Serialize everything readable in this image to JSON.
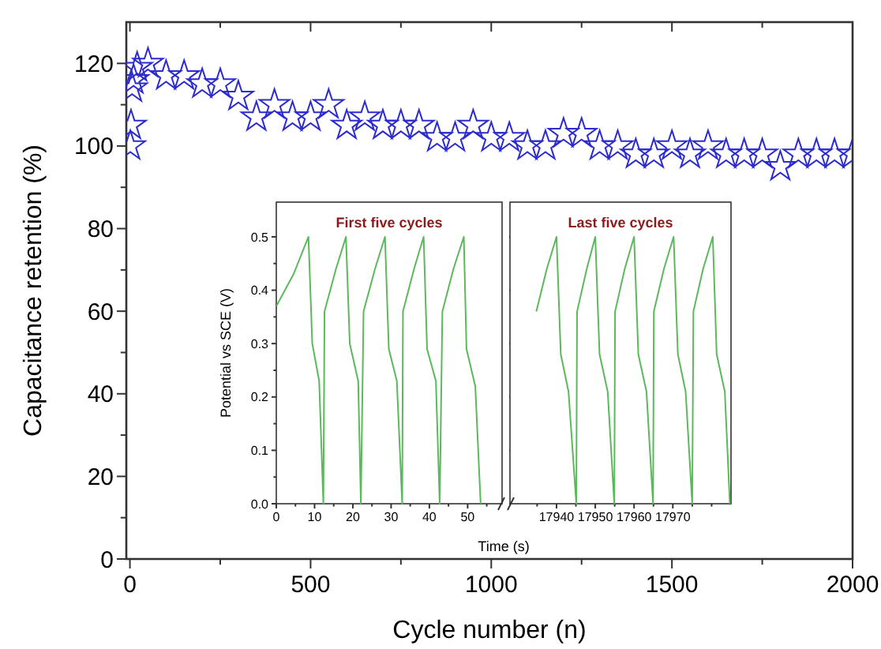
{
  "chart_data": [
    {
      "type": "scatter",
      "xlabel": "Cycle number (n)",
      "ylabel": "Capacitance retention (%)",
      "marker": "star",
      "xlim": [
        -10,
        2000
      ],
      "ylim": [
        0,
        130
      ],
      "xticks": [
        0,
        {
          "value": 250,
          "label": null
        },
        500,
        {
          "value": 750,
          "label": null
        },
        1000,
        {
          "value": 1250,
          "label": null
        },
        1500,
        {
          "value": 1750,
          "label": null
        },
        2000
      ],
      "yticks": [
        0,
        {
          "value": 10,
          "label": null
        },
        20,
        {
          "value": 30,
          "label": null
        },
        40,
        {
          "value": 50,
          "label": null
        },
        60,
        {
          "value": 70,
          "label": null
        },
        80,
        {
          "value": 90,
          "label": null
        },
        100,
        {
          "value": 110,
          "label": null
        },
        120
      ],
      "x": [
        1,
        3,
        6,
        10,
        20,
        50,
        100,
        150,
        200,
        250,
        300,
        350,
        400,
        450,
        500,
        550,
        600,
        650,
        700,
        750,
        800,
        850,
        900,
        950,
        1000,
        1050,
        1100,
        1150,
        1200,
        1250,
        1300,
        1350,
        1400,
        1450,
        1500,
        1550,
        1600,
        1650,
        1700,
        1750,
        1800,
        1850,
        1900,
        1950,
        2000
      ],
      "series": [
        {
          "color": "#2b2bd0",
          "values": [
            100,
            105,
            114,
            116,
            119,
            120,
            117,
            117,
            115,
            115,
            112,
            107,
            110,
            107,
            107,
            110,
            105,
            107,
            105,
            105,
            105,
            102,
            102,
            105,
            102,
            102,
            100,
            100,
            103,
            103,
            100,
            100,
            98,
            98,
            100,
            98,
            100,
            98,
            98,
            98,
            95,
            98,
            98,
            98,
            98
          ]
        }
      ]
    },
    {
      "type": "line",
      "title": "First five cycles",
      "ylabel": "Potential vs SCE (V)",
      "xlim": [
        0,
        59
      ],
      "ylim": [
        0,
        0.565
      ],
      "xticks": [
        0,
        {
          "value": 5,
          "label": null
        },
        10,
        {
          "value": 15,
          "label": null
        },
        20,
        {
          "value": 25,
          "label": null
        },
        30,
        {
          "value": 35,
          "label": null
        },
        40,
        {
          "value": 45,
          "label": null
        },
        50,
        {
          "value": 55,
          "label": null
        }
      ],
      "yticks": [
        {
          "value": 0,
          "label": "0.0"
        },
        {
          "value": 0.05,
          "label": null
        },
        0.1,
        {
          "value": 0.15,
          "label": null
        },
        0.2,
        {
          "value": 0.25,
          "label": null
        },
        0.3,
        {
          "value": 0.35,
          "label": null
        },
        0.4,
        {
          "value": 0.45,
          "label": null
        },
        0.5
      ],
      "x": [
        0,
        4.5,
        8.4,
        9.4,
        11.2,
        12.3,
        12.6,
        15.6,
        18.2,
        19.2,
        21.4,
        22.1,
        22.8,
        25.8,
        28.4,
        29.4,
        31.5,
        32.9,
        33.1,
        36,
        38.5,
        39.4,
        41.7,
        42.7,
        43.4,
        46.3,
        49,
        49.7,
        52,
        53.4
      ],
      "series": [
        {
          "color": "#5cb85c",
          "values": [
            0.37,
            0.43,
            0.5,
            0.3,
            0.23,
            0,
            0.36,
            0.44,
            0.5,
            0.3,
            0.23,
            0,
            0.36,
            0.44,
            0.5,
            0.29,
            0.23,
            0,
            0.36,
            0.44,
            0.5,
            0.29,
            0.23,
            0,
            0.36,
            0.44,
            0.5,
            0.29,
            0.22,
            0
          ]
        }
      ]
    },
    {
      "type": "line",
      "title": "Last five cycles",
      "xlabel": "Time (s)",
      "tick_labels": "x",
      "xlim": [
        17928,
        17985
      ],
      "ylim": [
        0,
        0.565
      ],
      "xticks": [
        {
          "value": 17935,
          "label": null
        },
        17940,
        {
          "value": 17945,
          "label": null
        },
        17950,
        {
          "value": 17955,
          "label": null
        },
        17960,
        {
          "value": 17965,
          "label": null
        },
        17970,
        {
          "value": 17975,
          "label": null
        },
        {
          "value": 17980,
          "label": null
        }
      ],
      "yticks": [
        0,
        0.1,
        0.2,
        0.3,
        0.4,
        0.5
      ],
      "x": [
        17934.8,
        17937.5,
        17940,
        17941.1,
        17943.1,
        17945.1,
        17945.3,
        17947.8,
        17950,
        17951.1,
        17953.2,
        17954.9,
        17955.1,
        17957.6,
        17960,
        17961.1,
        17963.2,
        17964.9,
        17965.1,
        17967.7,
        17970.2,
        17971.3,
        17973.3,
        17975,
        17975.3,
        17977.8,
        17980.3,
        17981.3,
        17983.4,
        17984.7
      ],
      "series": [
        {
          "color": "#5cb85c",
          "values": [
            0.36,
            0.44,
            0.5,
            0.28,
            0.21,
            0,
            0.36,
            0.44,
            0.5,
            0.28,
            0.21,
            0,
            0.36,
            0.44,
            0.5,
            0.28,
            0.21,
            0,
            0.36,
            0.44,
            0.5,
            0.28,
            0.21,
            0,
            0.36,
            0.44,
            0.5,
            0.28,
            0.21,
            0
          ]
        }
      ]
    }
  ]
}
